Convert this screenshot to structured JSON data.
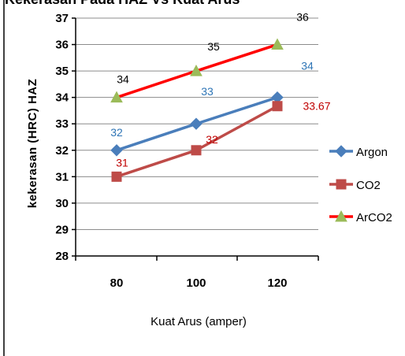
{
  "chart_data": {
    "type": "line",
    "title": "Kekerasan Pada HAZ Vs Kuat Arus",
    "xlabel": "Kuat Arus (amper)",
    "ylabel": "kekerasan (HRC)  HAZ",
    "categories": [
      "80",
      "100",
      "120"
    ],
    "ylim": [
      28,
      37
    ],
    "yticks": [
      "28",
      "29",
      "30",
      "31",
      "32",
      "33",
      "34",
      "35",
      "36",
      "37"
    ],
    "grid": true,
    "legend_position": "right",
    "series": [
      {
        "name": "Argon",
        "values": [
          32,
          33,
          34
        ],
        "color": "#4A7EBB",
        "marker": "diamond",
        "labels": [
          "32",
          "33",
          "34"
        ],
        "label_color": "#2E75B6"
      },
      {
        "name": "CO2",
        "values": [
          31,
          32,
          33.67
        ],
        "color": "#BE4B48",
        "marker": "square",
        "labels": [
          "31",
          "32",
          "33.67"
        ],
        "label_color": "#C00000"
      },
      {
        "name": "ArCO2",
        "values": [
          34,
          35,
          36
        ],
        "color": "#FF0000",
        "marker": "triangle",
        "marker_color": "#9BBB59",
        "labels": [
          "34",
          "35",
          "36"
        ],
        "label_color": "#000000"
      }
    ]
  }
}
